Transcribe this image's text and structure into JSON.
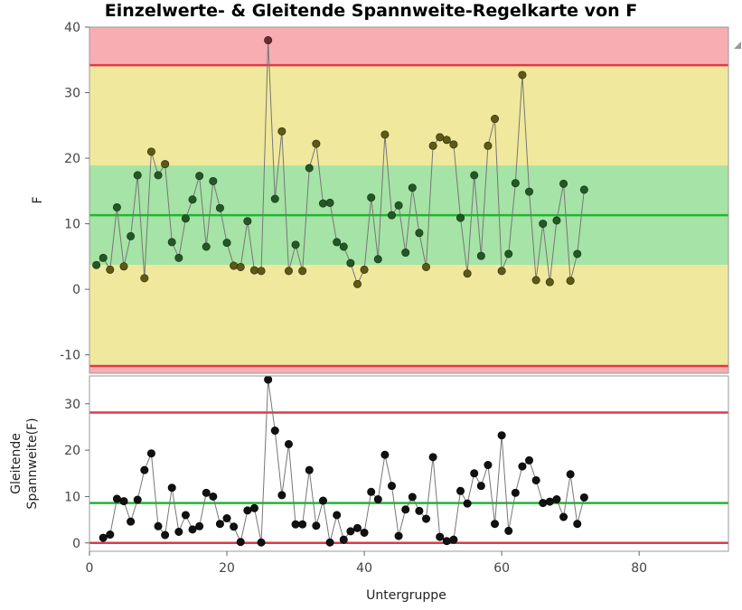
{
  "chart_data": {
    "type": "control_chart",
    "title": "Einzelwerte- & Gleitende Spannweite-Regelkarte von F",
    "xlabel": "Untergruppe",
    "xlim": [
      0,
      93
    ],
    "x_ticks": [
      0,
      20,
      40,
      60,
      80
    ],
    "x": [
      1,
      2,
      3,
      4,
      5,
      6,
      7,
      8,
      9,
      10,
      11,
      12,
      13,
      14,
      15,
      16,
      17,
      18,
      19,
      20,
      21,
      22,
      23,
      24,
      25,
      26,
      27,
      28,
      29,
      30,
      31,
      32,
      33,
      34,
      35,
      36,
      37,
      38,
      39,
      40,
      41,
      42,
      43,
      44,
      45,
      46,
      47,
      48,
      49,
      50,
      51,
      52,
      53,
      54,
      55,
      56,
      57,
      58,
      59,
      60,
      61,
      62,
      63,
      64,
      65,
      66,
      67,
      68,
      69,
      70,
      71,
      72
    ],
    "individuals": {
      "ylabel": "F",
      "ylim": [
        -12.8,
        40
      ],
      "y_ticks": [
        -10,
        0,
        10,
        20,
        30,
        40
      ],
      "center": 11.3,
      "ucl": 34.2,
      "lcl": -11.7,
      "zones": [
        {
          "from": 3.7,
          "to": 18.9,
          "color": "#a6e3a6"
        },
        {
          "from": -11.7,
          "to": 3.7,
          "color": "#f0e89c"
        },
        {
          "from": 18.9,
          "to": 34.2,
          "color": "#f0e89c"
        },
        {
          "from": 34.2,
          "to": 40,
          "color": "#f8adb3"
        },
        {
          "from": -12.8,
          "to": -11.7,
          "color": "#f8adb3"
        }
      ],
      "values": [
        3.7,
        4.8,
        3.0,
        12.5,
        3.5,
        8.1,
        17.4,
        1.7,
        21.0,
        17.4,
        19.1,
        7.2,
        4.8,
        10.8,
        13.7,
        17.3,
        6.5,
        16.5,
        12.4,
        7.1,
        3.6,
        3.4,
        10.4,
        2.9,
        2.8,
        38.0,
        13.8,
        24.1,
        2.8,
        6.8,
        2.8,
        18.5,
        22.2,
        13.1,
        13.2,
        7.2,
        6.5,
        4.0,
        0.8,
        3.0,
        14.0,
        4.6,
        23.6,
        11.3,
        12.8,
        5.6,
        15.5,
        8.6,
        3.4,
        21.9,
        23.2,
        22.8,
        22.1,
        10.9,
        2.4,
        17.4,
        5.1,
        21.9,
        26.0,
        2.8,
        5.4,
        16.2,
        32.7,
        14.9,
        1.4,
        10.0,
        1.1,
        10.5,
        16.1,
        1.3,
        5.4,
        15.2
      ]
    },
    "moving_range": {
      "ylabel": "Gleitende Spannweite(F)",
      "ylim": [
        -1.8,
        36
      ],
      "y_ticks": [
        0,
        10,
        20,
        30
      ],
      "center": 8.6,
      "ucl": 28.1,
      "lcl": 0,
      "values": [
        null,
        1.1,
        1.8,
        9.5,
        9.0,
        4.6,
        9.3,
        15.7,
        19.3,
        3.6,
        1.7,
        11.9,
        2.4,
        6.0,
        2.9,
        3.6,
        10.8,
        10.0,
        4.1,
        5.3,
        3.5,
        0.2,
        7.0,
        7.5,
        0.1,
        35.2,
        24.2,
        10.3,
        21.3,
        4.0,
        4.0,
        15.7,
        3.7,
        9.1,
        0.1,
        6.0,
        0.7,
        2.5,
        3.2,
        2.2,
        11.0,
        9.4,
        19.0,
        12.3,
        1.5,
        7.2,
        9.9,
        6.9,
        5.2,
        18.5,
        1.3,
        0.4,
        0.7,
        11.2,
        8.5,
        15.0,
        12.3,
        16.8,
        4.1,
        23.2,
        2.6,
        10.8,
        16.5,
        17.8,
        13.5,
        8.6,
        8.9,
        9.4,
        5.6,
        14.8,
        4.1,
        9.8
      ]
    }
  }
}
